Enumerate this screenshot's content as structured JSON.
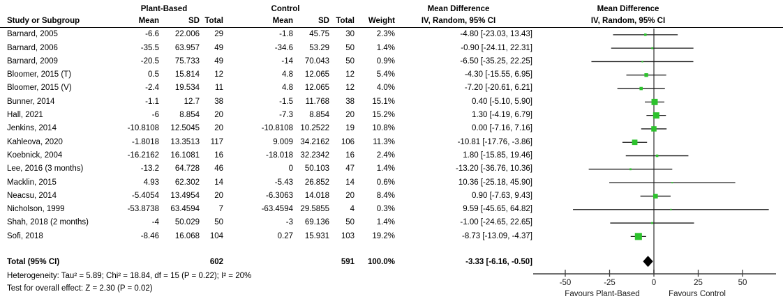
{
  "header": {
    "group_plant": "Plant-Based",
    "group_control": "Control",
    "study_col": "Study or Subgroup",
    "mean": "Mean",
    "sd": "SD",
    "total": "Total",
    "weight": "Weight",
    "md_line1": "Mean Difference",
    "md_line2": "IV, Random, 95% CI"
  },
  "table": {
    "rows": [
      {
        "name": "Barnard, 2005",
        "pb_mean": "-6.6",
        "pb_sd": "22.006",
        "pb_total": "29",
        "c_mean": "-1.8",
        "c_sd": "45.75",
        "c_total": "30",
        "weight": "2.3%",
        "ci_text": "-4.80 [-23.03, 13.43]"
      },
      {
        "name": "Barnard, 2006",
        "pb_mean": "-35.5",
        "pb_sd": "63.957",
        "pb_total": "49",
        "c_mean": "-34.6",
        "c_sd": "53.29",
        "c_total": "50",
        "weight": "1.4%",
        "ci_text": "-0.90 [-24.11, 22.31]"
      },
      {
        "name": "Barnard, 2009",
        "pb_mean": "-20.5",
        "pb_sd": "75.733",
        "pb_total": "49",
        "c_mean": "-14",
        "c_sd": "70.043",
        "c_total": "50",
        "weight": "0.9%",
        "ci_text": "-6.50 [-35.25, 22.25]"
      },
      {
        "name": "Bloomer, 2015 (T)",
        "pb_mean": "0.5",
        "pb_sd": "15.814",
        "pb_total": "12",
        "c_mean": "4.8",
        "c_sd": "12.065",
        "c_total": "12",
        "weight": "5.4%",
        "ci_text": "-4.30 [-15.55, 6.95]"
      },
      {
        "name": "Bloomer, 2015 (V)",
        "pb_mean": "-2.4",
        "pb_sd": "19.534",
        "pb_total": "11",
        "c_mean": "4.8",
        "c_sd": "12.065",
        "c_total": "12",
        "weight": "4.0%",
        "ci_text": "-7.20 [-20.61, 6.21]"
      },
      {
        "name": "Bunner, 2014",
        "pb_mean": "-1.1",
        "pb_sd": "12.7",
        "pb_total": "38",
        "c_mean": "-1.5",
        "c_sd": "11.768",
        "c_total": "38",
        "weight": "15.1%",
        "ci_text": "0.40 [-5.10, 5.90]"
      },
      {
        "name": "Hall, 2021",
        "pb_mean": "-6",
        "pb_sd": "8.854",
        "pb_total": "20",
        "c_mean": "-7.3",
        "c_sd": "8.854",
        "c_total": "20",
        "weight": "15.2%",
        "ci_text": "1.30 [-4.19, 6.79]"
      },
      {
        "name": "Jenkins, 2014",
        "pb_mean": "-10.8108",
        "pb_sd": "12.5045",
        "pb_total": "20",
        "c_mean": "-10.8108",
        "c_sd": "10.2522",
        "c_total": "19",
        "weight": "10.8%",
        "ci_text": "0.00 [-7.16, 7.16]"
      },
      {
        "name": "Kahleova, 2020",
        "pb_mean": "-1.8018",
        "pb_sd": "13.3513",
        "pb_total": "117",
        "c_mean": "9.009",
        "c_sd": "34.2162",
        "c_total": "106",
        "weight": "11.3%",
        "ci_text": "-10.81 [-17.76, -3.86]"
      },
      {
        "name": "Koebnick, 2004",
        "pb_mean": "-16.2162",
        "pb_sd": "16.1081",
        "pb_total": "16",
        "c_mean": "-18.018",
        "c_sd": "32.2342",
        "c_total": "16",
        "weight": "2.4%",
        "ci_text": "1.80 [-15.85, 19.46]"
      },
      {
        "name": "Lee, 2016 (3 months)",
        "pb_mean": "-13.2",
        "pb_sd": "64.728",
        "pb_total": "46",
        "c_mean": "0",
        "c_sd": "50.103",
        "c_total": "47",
        "weight": "1.4%",
        "ci_text": "-13.20 [-36.76, 10.36]"
      },
      {
        "name": "Macklin, 2015",
        "pb_mean": "4.93",
        "pb_sd": "62.302",
        "pb_total": "14",
        "c_mean": "-5.43",
        "c_sd": "26.852",
        "c_total": "14",
        "weight": "0.6%",
        "ci_text": "10.36 [-25.18, 45.90]"
      },
      {
        "name": "Neacsu, 2014",
        "pb_mean": "-5.4054",
        "pb_sd": "13.4954",
        "pb_total": "20",
        "c_mean": "-6.3063",
        "c_sd": "14.018",
        "c_total": "20",
        "weight": "8.4%",
        "ci_text": "0.90 [-7.63, 9.43]"
      },
      {
        "name": "Nicholson, 1999",
        "pb_mean": "-53.8738",
        "pb_sd": "63.4594",
        "pb_total": "7",
        "c_mean": "-63.4594",
        "c_sd": "29.5855",
        "c_total": "4",
        "weight": "0.3%",
        "ci_text": "9.59 [-45.65, 64.82]"
      },
      {
        "name": "Shah, 2018 (2 months)",
        "pb_mean": "-4",
        "pb_sd": "50.029",
        "pb_total": "50",
        "c_mean": "-3",
        "c_sd": "69.136",
        "c_total": "50",
        "weight": "1.4%",
        "ci_text": "-1.00 [-24.65, 22.65]"
      },
      {
        "name": "Sofi, 2018",
        "pb_mean": "-8.46",
        "pb_sd": "16.068",
        "pb_total": "104",
        "c_mean": "0.27",
        "c_sd": "15.931",
        "c_total": "103",
        "weight": "19.2%",
        "ci_text": "-8.73 [-13.09, -4.37]"
      }
    ],
    "total_row": {
      "label": "Total (95% CI)",
      "pb_total": "602",
      "c_total": "591",
      "weight": "100.0%",
      "ci_text": "-3.33 [-6.16, -0.50]"
    }
  },
  "footer": {
    "heterogeneity": "Heterogeneity: Tau² = 5.89; Chi² = 18.84, df = 15 (P = 0.22); I² = 20%",
    "overall": "Test for overall effect: Z = 2.30 (P = 0.02)"
  },
  "chart_data": {
    "type": "scatter",
    "subtype": "forest-plot",
    "title": "Mean Difference, IV, Random, 95% CI",
    "x_ticks": [
      -50,
      -25,
      0,
      25,
      50
    ],
    "xlim": [
      -68,
      69
    ],
    "favours_left": "Favours Plant-Based",
    "favours_right": "Favours Control",
    "marker_color": "#2DC22D",
    "ci_line_color": "#1a1a1a",
    "zero_line_color": "#808080",
    "axis_color": "#404040",
    "diamond_color": "#000000",
    "points": [
      {
        "label": "Barnard, 2005",
        "md": -4.8,
        "lo": -23.03,
        "hi": 13.43,
        "weight_pct": 2.3
      },
      {
        "label": "Barnard, 2006",
        "md": -0.9,
        "lo": -24.11,
        "hi": 22.31,
        "weight_pct": 1.4
      },
      {
        "label": "Barnard, 2009",
        "md": -6.5,
        "lo": -35.25,
        "hi": 22.25,
        "weight_pct": 0.9
      },
      {
        "label": "Bloomer, 2015 (T)",
        "md": -4.3,
        "lo": -15.55,
        "hi": 6.95,
        "weight_pct": 5.4
      },
      {
        "label": "Bloomer, 2015 (V)",
        "md": -7.2,
        "lo": -20.61,
        "hi": 6.21,
        "weight_pct": 4.0
      },
      {
        "label": "Bunner, 2014",
        "md": 0.4,
        "lo": -5.1,
        "hi": 5.9,
        "weight_pct": 15.1
      },
      {
        "label": "Hall, 2021",
        "md": 1.3,
        "lo": -4.19,
        "hi": 6.79,
        "weight_pct": 15.2
      },
      {
        "label": "Jenkins, 2014",
        "md": 0.0,
        "lo": -7.16,
        "hi": 7.16,
        "weight_pct": 10.8
      },
      {
        "label": "Kahleova, 2020",
        "md": -10.81,
        "lo": -17.76,
        "hi": -3.86,
        "weight_pct": 11.3
      },
      {
        "label": "Koebnick, 2004",
        "md": 1.8,
        "lo": -15.85,
        "hi": 19.46,
        "weight_pct": 2.4
      },
      {
        "label": "Lee, 2016 (3 months)",
        "md": -13.2,
        "lo": -36.76,
        "hi": 10.36,
        "weight_pct": 1.4
      },
      {
        "label": "Macklin, 2015",
        "md": 10.36,
        "lo": -25.18,
        "hi": 45.9,
        "weight_pct": 0.6
      },
      {
        "label": "Neacsu, 2014",
        "md": 0.9,
        "lo": -7.63,
        "hi": 9.43,
        "weight_pct": 8.4
      },
      {
        "label": "Nicholson, 1999",
        "md": 9.59,
        "lo": -45.65,
        "hi": 64.82,
        "weight_pct": 0.3
      },
      {
        "label": "Shah, 2018 (2 months)",
        "md": -1.0,
        "lo": -24.65,
        "hi": 22.65,
        "weight_pct": 1.4
      },
      {
        "label": "Sofi, 2018",
        "md": -8.73,
        "lo": -13.09,
        "hi": -4.37,
        "weight_pct": 19.2
      }
    ],
    "total": {
      "label": "Total (95% CI)",
      "md": -3.33,
      "lo": -6.16,
      "hi": -0.5,
      "weight_pct": 100.0
    }
  }
}
